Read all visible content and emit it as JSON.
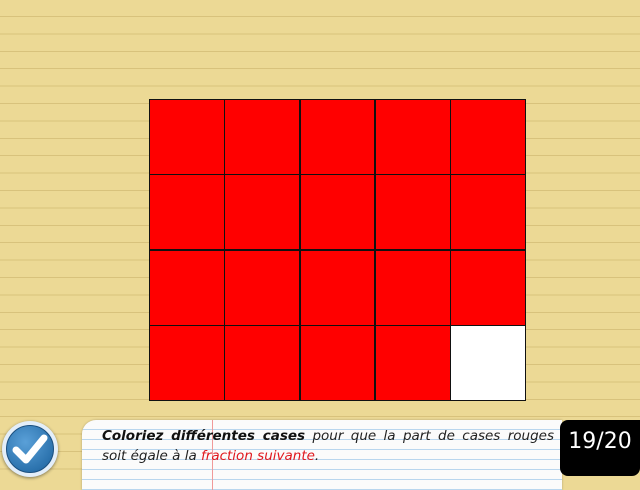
{
  "grid": {
    "rows": 4,
    "cols": 5,
    "filled_color": "#ff0000",
    "empty_color": "#ffffff",
    "cells": [
      [
        1,
        1,
        1,
        1,
        1
      ],
      [
        1,
        1,
        1,
        1,
        1
      ],
      [
        1,
        1,
        1,
        1,
        1
      ],
      [
        1,
        1,
        1,
        1,
        0
      ]
    ]
  },
  "instruction": {
    "bold_text": "Coloriez différentes cases",
    "text_part1": " pour que la part de cases rouges soit égale à la ",
    "highlight_text": "fraction suivante",
    "text_end": "."
  },
  "progress": {
    "label": "19/20",
    "current": 19,
    "total": 20
  },
  "validate_button": {
    "icon": "checkmark-icon"
  },
  "colors": {
    "background": "#ecd995",
    "accent_red": "#e0181e",
    "button_blue": "#2c73ae"
  }
}
